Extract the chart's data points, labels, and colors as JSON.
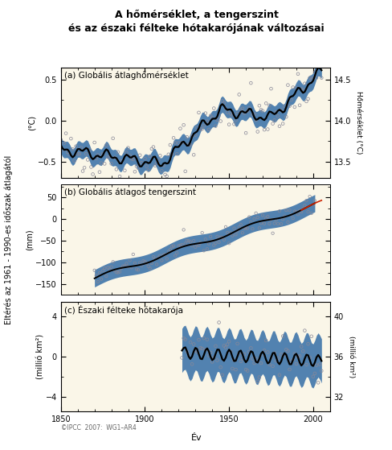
{
  "title_line1": "A hőmérséklet, a tengerszint",
  "title_line2": "és az északi félteke hótakarójának változásai",
  "bg_color": "#faf6e8",
  "panel_bg": "#faf6e8",
  "blue_band": "#1a5c9e",
  "scatter_open": "#d0d0d8",
  "scatter_edge": "#888898",
  "line_color": "#000000",
  "red_line": "#cc2200",
  "panel_a_label": "(a) Globális átlaghőmérséklet",
  "panel_b_label": "(b) Globális átlagos tengerszint",
  "panel_c_label": "(c) Északi félteke hótakarója",
  "ylabel_shared": "Eltérés az 1961 - 1990-es időszak átlagától",
  "ylabel_a_unit": "(°C)",
  "ylabel_b_unit": "(mm)",
  "ylabel_c_unit": "(millió km²)",
  "ylabel_a_right": "Hőmérséklet (°C)",
  "ylabel_c_right": "(millió km²)",
  "xlabel": "Év",
  "copyright": "©IPCC  2007:  WG1–AR4"
}
